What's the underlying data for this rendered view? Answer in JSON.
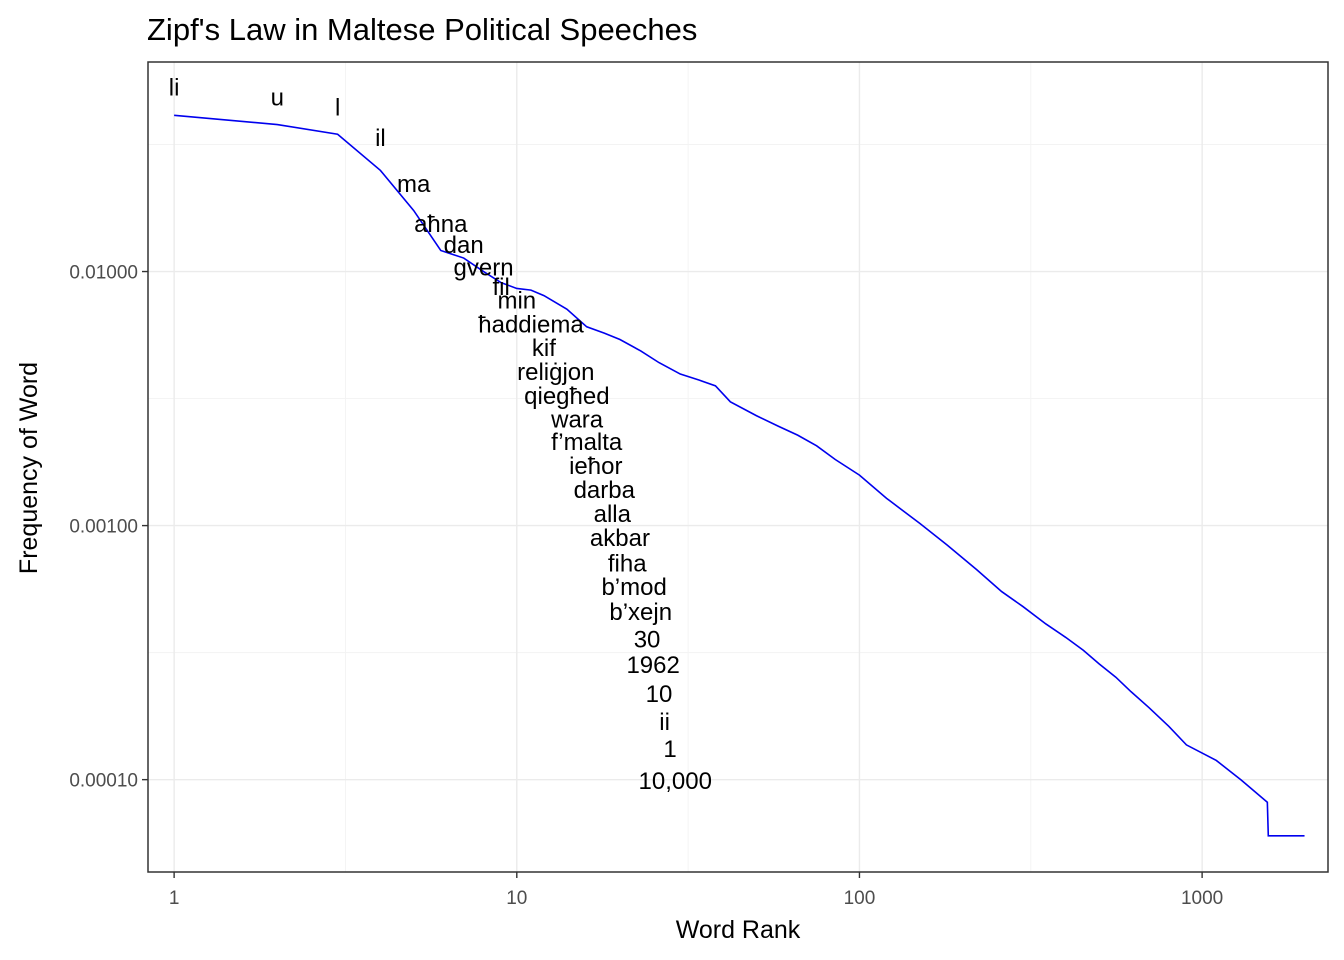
{
  "chart_data": {
    "type": "line",
    "title": "Zipf's Law in Maltese Political Speeches",
    "xlabel": "Word Rank",
    "ylabel": "Frequency of Word",
    "x_scale": "log10",
    "y_scale": "log10",
    "xlim": [
      0.839,
      2330
    ],
    "ylim": [
      4.33e-05,
      0.0668
    ],
    "x_ticks": [
      {
        "value": 1,
        "label": "1"
      },
      {
        "value": 10,
        "label": "10"
      },
      {
        "value": 100,
        "label": "100"
      },
      {
        "value": 1000,
        "label": "1000"
      }
    ],
    "y_ticks": [
      {
        "value": 0.0001,
        "label": "0.00010"
      },
      {
        "value": 0.001,
        "label": "0.00100"
      },
      {
        "value": 0.01,
        "label": "0.01000"
      }
    ],
    "grid": true,
    "line_color": "#0000ee",
    "series": [
      {
        "points": [
          [
            1,
            0.0412
          ],
          [
            2,
            0.0379
          ],
          [
            3,
            0.0347
          ],
          [
            4,
            0.025
          ],
          [
            5,
            0.0174
          ],
          [
            6,
            0.0121
          ],
          [
            7,
            0.0113
          ],
          [
            8,
            0.01
          ],
          [
            9,
            0.00904
          ],
          [
            10,
            0.00858
          ],
          [
            11,
            0.00845
          ],
          [
            12,
            0.00804
          ],
          [
            14,
            0.00711
          ],
          [
            16,
            0.00606
          ],
          [
            18,
            0.00572
          ],
          [
            20,
            0.0054
          ],
          [
            23,
            0.00487
          ],
          [
            26,
            0.00438
          ],
          [
            30,
            0.00395
          ],
          [
            34,
            0.00374
          ],
          [
            38,
            0.00355
          ],
          [
            42,
            0.00307
          ],
          [
            50,
            0.00271
          ],
          [
            58,
            0.00246
          ],
          [
            66,
            0.00227
          ],
          [
            75,
            0.00206
          ],
          [
            85,
            0.00182
          ],
          [
            100,
            0.00158
          ],
          [
            120,
            0.00128
          ],
          [
            150,
            0.00102
          ],
          [
            180,
            0.00084
          ],
          [
            220,
            0.00067
          ],
          [
            260,
            0.00055
          ],
          [
            300,
            0.00048
          ],
          [
            350,
            0.00041
          ],
          [
            400,
            0.000363
          ],
          [
            450,
            0.000323
          ],
          [
            500,
            0.000286
          ],
          [
            560,
            0.000253
          ],
          [
            620,
            0.000222
          ],
          [
            700,
            0.000192
          ],
          [
            800,
            0.000162
          ],
          [
            900,
            0.000137
          ],
          [
            1100,
            0.000119
          ],
          [
            1300,
            9.97e-05
          ],
          [
            1550,
            8.15e-05
          ],
          [
            1560,
            6.01e-05
          ],
          [
            1990,
            6.01e-05
          ]
        ]
      }
    ],
    "word_labels": [
      {
        "text": "li",
        "rank": 1,
        "freq": 0.0529
      },
      {
        "text": "u",
        "rank": 2,
        "freq": 0.0484
      },
      {
        "text": "l",
        "rank": 3,
        "freq": 0.0442
      },
      {
        "text": "il",
        "rank": 4,
        "freq": 0.0336
      },
      {
        "text": "ma",
        "rank": 5,
        "freq": 0.0221
      },
      {
        "text": "aħna",
        "rank": 6,
        "freq": 0.0154
      },
      {
        "text": "dan",
        "rank": 7,
        "freq": 0.0127
      },
      {
        "text": "gvern",
        "rank": 8,
        "freq": 0.01035
      },
      {
        "text": "fil",
        "rank": 9,
        "freq": 0.00871
      },
      {
        "text": "min",
        "rank": 10,
        "freq": 0.00769
      },
      {
        "text": "ħaddiema",
        "rank": 11,
        "freq": 0.00618
      },
      {
        "text": "kif",
        "rank": 12,
        "freq": 0.00499
      },
      {
        "text": "reliġjon",
        "rank": 13,
        "freq": 0.00403
      },
      {
        "text": "qiegħed",
        "rank": 14,
        "freq": 0.00324
      },
      {
        "text": "wara",
        "rank": 15,
        "freq": 0.00262
      },
      {
        "text": "f’malta",
        "rank": 16,
        "freq": 0.00213
      },
      {
        "text": "ieħor",
        "rank": 17,
        "freq": 0.00172
      },
      {
        "text": "darba",
        "rank": 18,
        "freq": 0.00138
      },
      {
        "text": "alla",
        "rank": 19,
        "freq": 0.00111
      },
      {
        "text": "akbar",
        "rank": 20,
        "freq": 0.000893
      },
      {
        "text": "fiha",
        "rank": 21,
        "freq": 0.000709
      },
      {
        "text": "b’mod",
        "rank": 22,
        "freq": 0.000572
      },
      {
        "text": "b’xejn",
        "rank": 23,
        "freq": 0.000457
      },
      {
        "text": "30",
        "rank": 24,
        "freq": 0.000356
      },
      {
        "text": "1962",
        "rank": 25,
        "freq": 0.000283
      },
      {
        "text": "10",
        "rank": 26,
        "freq": 0.000217
      },
      {
        "text": "ii",
        "rank": 27,
        "freq": 0.000169
      },
      {
        "text": "1",
        "rank": 28,
        "freq": 0.000132
      },
      {
        "text": "10,000",
        "rank": 29,
        "freq": 9.88e-05
      }
    ]
  }
}
